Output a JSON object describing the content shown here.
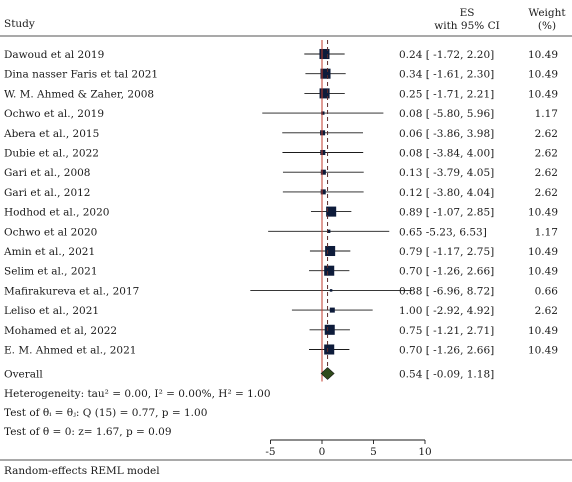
{
  "header": {
    "study": "Study",
    "es_line1": "ES",
    "es_line2": "with 95% CI",
    "weight_line1": "Weight",
    "weight_line2": "(%)"
  },
  "chart_data": {
    "type": "forest",
    "x_ticks": [
      -5,
      0,
      5,
      10
    ],
    "xlim": [
      -7,
      10
    ],
    "no_effect_line": 0,
    "overall_line": 0.54,
    "colors": {
      "marker": "#0d1b3a",
      "ci_line": "#1a1a1a",
      "diamond": "#2f4a1a",
      "no_effect_line": "#c0392b",
      "overall_line": "#5a2a2a"
    },
    "studies": [
      {
        "label": "Dawoud et al 2019",
        "es": 0.24,
        "lo": -1.72,
        "hi": 2.2,
        "text": "0.24 [ -1.72, 2.20]",
        "weight": "10.49",
        "w": 10.49
      },
      {
        "label": "Dina nasser Faris et tal 2021",
        "es": 0.34,
        "lo": -1.61,
        "hi": 2.3,
        "text": "0.34 [ -1.61, 2.30]",
        "weight": "10.49",
        "w": 10.49
      },
      {
        "label": "W. M. Ahmed & Zaher, 2008",
        "es": 0.25,
        "lo": -1.71,
        "hi": 2.21,
        "text": "0.25 [ -1.71, 2.21]",
        "weight": "10.49",
        "w": 10.49
      },
      {
        "label": "Ochwo et al., 2019",
        "es": 0.08,
        "lo": -5.8,
        "hi": 5.96,
        "text": "0.08 [ -5.80, 5.96]",
        "weight": "1.17",
        "w": 1.17
      },
      {
        "label": "Abera et al., 2015",
        "es": 0.06,
        "lo": -3.86,
        "hi": 3.98,
        "text": "0.06 [ -3.86, 3.98]",
        "weight": "2.62",
        "w": 2.62
      },
      {
        "label": "Dubie et al., 2022",
        "es": 0.08,
        "lo": -3.84,
        "hi": 4.0,
        "text": "0.08 [ -3.84, 4.00]",
        "weight": "2.62",
        "w": 2.62
      },
      {
        "label": "Gari et al., 2008",
        "es": 0.13,
        "lo": -3.79,
        "hi": 4.05,
        "text": "0.13 [ -3.79, 4.05]",
        "weight": "2.62",
        "w": 2.62
      },
      {
        "label": "Gari et al., 2012",
        "es": 0.12,
        "lo": -3.8,
        "hi": 4.04,
        "text": "0.12 [ -3.80, 4.04]",
        "weight": "2.62",
        "w": 2.62
      },
      {
        "label": "Hodhod et al., 2020",
        "es": 0.89,
        "lo": -1.07,
        "hi": 2.85,
        "text": "0.89 [ -1.07, 2.85]",
        "weight": "10.49",
        "w": 10.49
      },
      {
        "label": "Ochwo et al 2020",
        "es": 0.65,
        "lo": -5.23,
        "hi": 6.53,
        "text": "0.65 -5.23, 6.53]",
        "weight": "1.17",
        "w": 1.17
      },
      {
        "label": "Amin et al., 2021",
        "es": 0.79,
        "lo": -1.17,
        "hi": 2.75,
        "text": "0.79 [ -1.17, 2.75]",
        "weight": "10.49",
        "w": 10.49
      },
      {
        "label": "Selim et al., 2021",
        "es": 0.7,
        "lo": -1.26,
        "hi": 2.66,
        "text": "0.70 [ -1.26, 2.66]",
        "weight": "10.49",
        "w": 10.49
      },
      {
        "label": "Mafirakureva et al., 2017",
        "es": 0.88,
        "lo": -6.96,
        "hi": 8.72,
        "text": "0.88 [ -6.96, 8.72]",
        "weight": "0.66",
        "w": 0.66
      },
      {
        "label": "Leliso et al., 2021",
        "es": 1.0,
        "lo": -2.92,
        "hi": 4.92,
        "text": "1.00 [ -2.92, 4.92]",
        "weight": "2.62",
        "w": 2.62
      },
      {
        "label": "Mohamed et al, 2022",
        "es": 0.75,
        "lo": -1.21,
        "hi": 2.71,
        "text": "0.75 [ -1.21, 2.71]",
        "weight": "10.49",
        "w": 10.49
      },
      {
        "label": "E. M. Ahmed et al., 2021",
        "es": 0.7,
        "lo": -1.26,
        "hi": 2.66,
        "text": "0.70 [ -1.26, 2.66]",
        "weight": "10.49",
        "w": 10.49
      }
    ],
    "overall": {
      "label": "Overall",
      "es": 0.54,
      "lo": -0.09,
      "hi": 1.18,
      "text": "0.54 [ -0.09, 1.18]"
    },
    "stats": [
      "Heterogeneity: tau² = 0.00, I² = 0.00%, H² = 1.00",
      "Test of θᵢ = θⱼ: Q (15) = 0.77, p = 1.00",
      "Test of θ = 0: z= 1.67, p = 0.09"
    ],
    "model_note": "Random-effects REML model"
  }
}
